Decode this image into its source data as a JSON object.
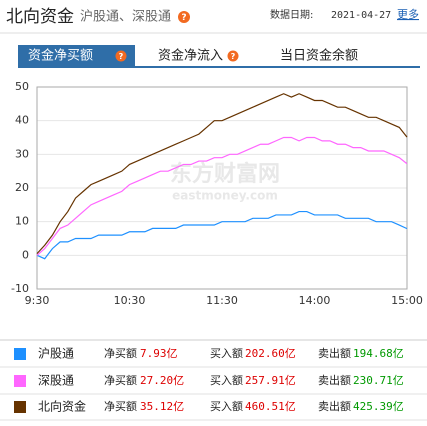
{
  "header": {
    "title": "北向资金",
    "subtitle": "沪股通、深股通",
    "help_icon": "?",
    "date_label": "数据日期:",
    "date": "2021-04-27",
    "more": "更多"
  },
  "tabs": [
    "资金净买额",
    "资金净流入",
    "当日资金余额"
  ],
  "watermark": {
    "brand": "东方财富网",
    "site": "eastmoney.com"
  },
  "chart_data": {
    "type": "line",
    "ylim": [
      -10,
      50
    ],
    "yticks": [
      -10,
      0,
      10,
      20,
      30,
      40,
      50
    ],
    "grid": true,
    "categories": [
      "9:30",
      null,
      null,
      null,
      null,
      null,
      null,
      null,
      null,
      null,
      null,
      null,
      "10:30",
      null,
      null,
      null,
      null,
      null,
      null,
      null,
      null,
      null,
      null,
      null,
      "11:30",
      null,
      null,
      null,
      null,
      null,
      null,
      null,
      null,
      null,
      null,
      null,
      "14:00",
      null,
      null,
      null,
      null,
      null,
      null,
      null,
      null,
      null,
      null,
      null,
      "15:00"
    ],
    "series": [
      {
        "name": "沪股通",
        "color": "#1e90ff",
        "values": [
          0,
          -1,
          2,
          4,
          4,
          5,
          5,
          5,
          6,
          6,
          6,
          6,
          7,
          7,
          7,
          8,
          8,
          8,
          8,
          9,
          9,
          9,
          9,
          9,
          10,
          10,
          10,
          10,
          11,
          11,
          11,
          12,
          12,
          12,
          13,
          13,
          12,
          12,
          12,
          12,
          11,
          11,
          11,
          11,
          10,
          10,
          10,
          9,
          7.93
        ]
      },
      {
        "name": "深股通",
        "color": "#ff66ff",
        "values": [
          0,
          2,
          5,
          8,
          9,
          11,
          13,
          15,
          16,
          17,
          18,
          19,
          21,
          22,
          23,
          24,
          25,
          25,
          26,
          27,
          27,
          28,
          28,
          29,
          29,
          30,
          30,
          31,
          32,
          33,
          33,
          34,
          35,
          35,
          34,
          35,
          35,
          34,
          34,
          33,
          33,
          32,
          32,
          31,
          31,
          31,
          30,
          29,
          27.2
        ]
      },
      {
        "name": "北向资金",
        "color": "#663300",
        "values": [
          0.5,
          3,
          6,
          10,
          13,
          17,
          19,
          21,
          22,
          23,
          24,
          25,
          27,
          28,
          29,
          30,
          31,
          32,
          33,
          34,
          35,
          36,
          38,
          40,
          40,
          41,
          42,
          43,
          44,
          45,
          46,
          47,
          48,
          47,
          48,
          47,
          46,
          46,
          45,
          44,
          44,
          43,
          42,
          41,
          41,
          40,
          39,
          38,
          35.12
        ]
      }
    ]
  },
  "summary": {
    "labels": [
      "净买额",
      "买入额",
      "卖出额"
    ],
    "rows": [
      [
        "7.93亿",
        "202.60亿",
        "194.68亿"
      ],
      [
        "27.20亿",
        "257.91亿",
        "230.71亿"
      ],
      [
        "35.12亿",
        "460.51亿",
        "425.39亿"
      ]
    ]
  }
}
